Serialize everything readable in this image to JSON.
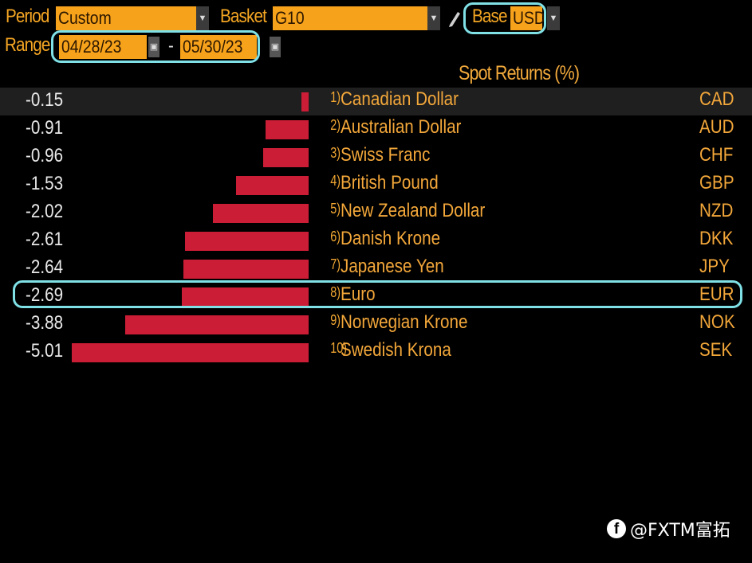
{
  "header": {
    "period_label": "Period",
    "period_value": "Custom",
    "basket_label": "Basket",
    "basket_value": "G10",
    "base_label": "Base",
    "base_value": "USD",
    "range_label": "Range",
    "range_start": "04/28/23",
    "range_sep": "-",
    "range_end": "05/30/23"
  },
  "column_title": "Spot Returns (%)",
  "watermark": "@FXTM富拓",
  "chart_data": {
    "type": "bar",
    "title": "Spot Returns (%)",
    "xlim": [
      -5.01,
      0
    ],
    "rows": [
      {
        "rank": "1)",
        "name": "Canadian Dollar",
        "code": "CAD",
        "value": -0.15,
        "value_label": "-0.15"
      },
      {
        "rank": "2)",
        "name": "Australian Dollar",
        "code": "AUD",
        "value": -0.91,
        "value_label": "-0.91"
      },
      {
        "rank": "3)",
        "name": "Swiss Franc",
        "code": "CHF",
        "value": -0.96,
        "value_label": "-0.96"
      },
      {
        "rank": "4)",
        "name": "British Pound",
        "code": "GBP",
        "value": -1.53,
        "value_label": "-1.53"
      },
      {
        "rank": "5)",
        "name": "New Zealand Dollar",
        "code": "NZD",
        "value": -2.02,
        "value_label": "-2.02"
      },
      {
        "rank": "6)",
        "name": "Danish Krone",
        "code": "DKK",
        "value": -2.61,
        "value_label": "-2.61"
      },
      {
        "rank": "7)",
        "name": "Japanese Yen",
        "code": "JPY",
        "value": -2.64,
        "value_label": "-2.64"
      },
      {
        "rank": "8)",
        "name": "Euro",
        "code": "EUR",
        "value": -2.69,
        "value_label": "-2.69"
      },
      {
        "rank": "9)",
        "name": "Norwegian Krone",
        "code": "NOK",
        "value": -3.88,
        "value_label": "-3.88"
      },
      {
        "rank": "10)",
        "name": "Swedish Krona",
        "code": "SEK",
        "value": -5.01,
        "value_label": "-5.01"
      }
    ]
  },
  "colors": {
    "bar": "#cc1d36",
    "highlight": "#7fe0e6",
    "accent": "#f7a21b"
  }
}
